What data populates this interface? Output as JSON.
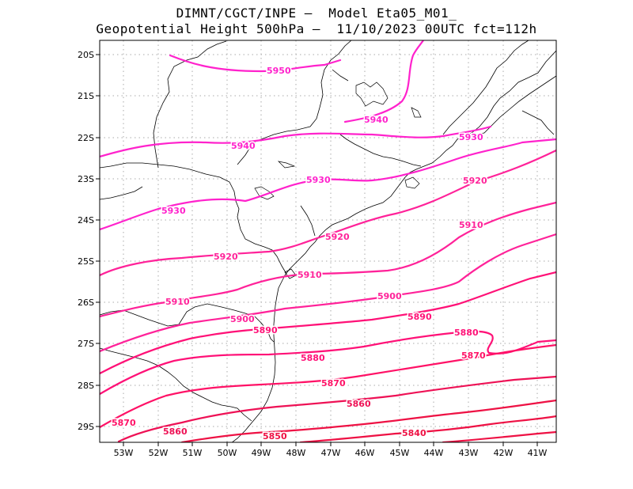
{
  "title_line1": "DIMNT/CGCT/INPE –  Model Eta05_M01_",
  "title_line2": "Geopotential Height 500hPa –  11/10/2023 00UTC fct=112h",
  "axes": {
    "lon_labels": [
      "53W",
      "52W",
      "51W",
      "50W",
      "49W",
      "48W",
      "47W",
      "46W",
      "45W",
      "44W",
      "43W",
      "42W",
      "41W"
    ],
    "lat_labels": [
      "20S",
      "21S",
      "22S",
      "23S",
      "24S",
      "25S",
      "26S",
      "27S",
      "28S",
      "29S"
    ],
    "lon_range": [
      -53.7,
      -40.5
    ],
    "lat_range": [
      -29.4,
      -19.6
    ],
    "grid": "dotted"
  },
  "contours": [
    {
      "value": 5950,
      "label": "5950",
      "color": "#ff22cc"
    },
    {
      "value": 5940,
      "label": "5940",
      "color": "#ff22cc"
    },
    {
      "value": 5930,
      "label": "5930",
      "color": "#ff22cc"
    },
    {
      "value": 5920,
      "label": "5920",
      "color": "#ff2299"
    },
    {
      "value": 5910,
      "label": "5910",
      "color": "#ff2299"
    },
    {
      "value": 5900,
      "label": "5900",
      "color": "#ff2299"
    },
    {
      "value": 5890,
      "label": "5890",
      "color": "#ff1177"
    },
    {
      "value": 5880,
      "label": "5880",
      "color": "#ff1177"
    },
    {
      "value": 5870,
      "label": "5870",
      "color": "#ff1166"
    },
    {
      "value": 5860,
      "label": "5860",
      "color": "#ee1155"
    },
    {
      "value": 5850,
      "label": "5850",
      "color": "#ee1144"
    },
    {
      "value": 5840,
      "label": "5840",
      "color": "#ee1144"
    }
  ]
}
